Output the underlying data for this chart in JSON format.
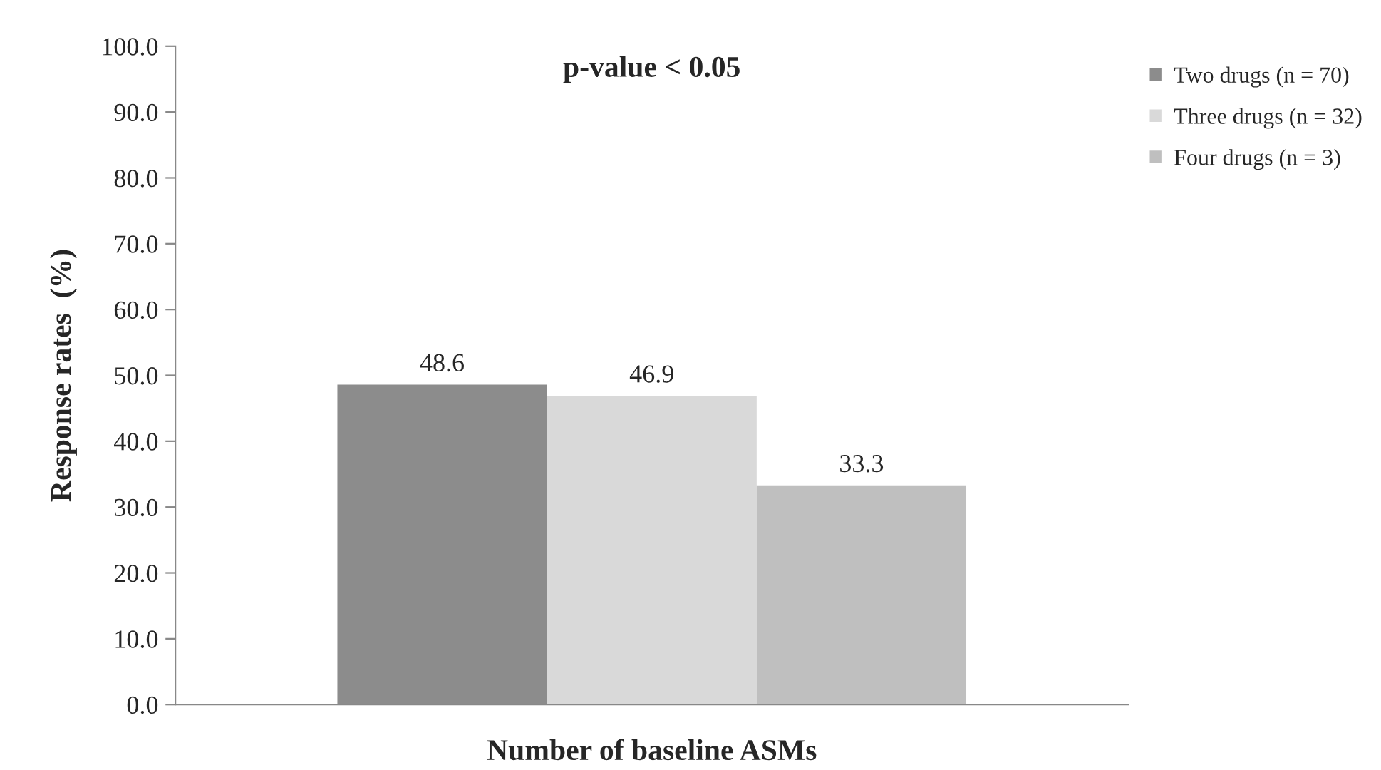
{
  "chart_data": {
    "type": "bar",
    "ylabel": "Response rates  (%)",
    "xlabel": "Number of baseline ASMs",
    "categories": [
      null
    ],
    "series": [
      {
        "name": "Two drugs (n = 70)",
        "color": "#8c8c8c",
        "values": [
          48.6
        ]
      },
      {
        "name": "Three drugs (n = 32)",
        "color": "#d9d9d9",
        "values": [
          46.9
        ]
      },
      {
        "name": "Four drugs (n = 3)",
        "color": "#bfbfbf",
        "values": [
          33.3
        ]
      }
    ],
    "ylim": [
      0,
      100
    ],
    "yticks": [
      {
        "value": 0,
        "label": "0.0"
      },
      {
        "value": 10,
        "label": "10.0"
      },
      {
        "value": 20,
        "label": "20.0"
      },
      {
        "value": 30,
        "label": "30.0"
      },
      {
        "value": 40,
        "label": "40.0"
      },
      {
        "value": 50,
        "label": "50.0"
      },
      {
        "value": 60,
        "label": "60.0"
      },
      {
        "value": 70,
        "label": "70.0"
      },
      {
        "value": 80,
        "label": "80.0"
      },
      {
        "value": 90,
        "label": "90.0"
      },
      {
        "value": 100,
        "label": "100.0"
      }
    ],
    "annotations": [
      "p-value < 0.05"
    ],
    "data_labels": true,
    "grid": false,
    "legend": "top right"
  }
}
